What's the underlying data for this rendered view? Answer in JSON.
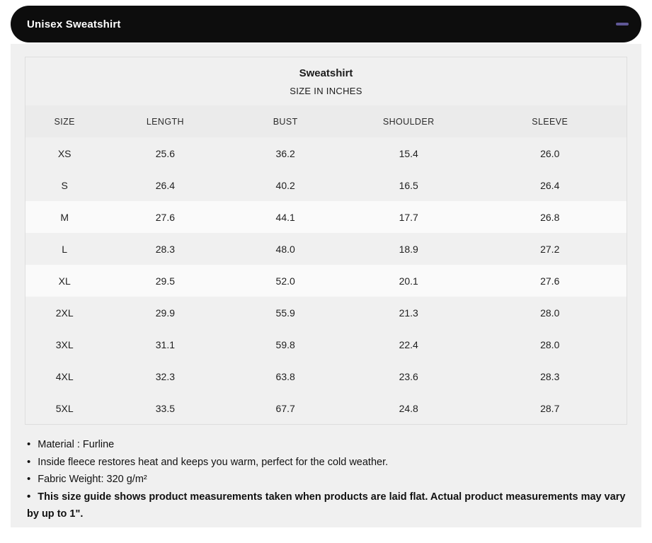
{
  "accordion": {
    "title": "Unisex Sweatshirt",
    "collapse_icon": "minus-icon"
  },
  "size_table": {
    "title": "Sweatshirt",
    "subtitle": "SIZE IN INCHES",
    "columns": [
      "SIZE",
      "LENGTH",
      "BUST",
      "SHOULDER",
      "SLEEVE"
    ],
    "rows": [
      {
        "size": "XS",
        "length": "25.6",
        "bust": "36.2",
        "shoulder": "15.4",
        "sleeve": "26.0",
        "highlight": false
      },
      {
        "size": "S",
        "length": "26.4",
        "bust": "40.2",
        "shoulder": "16.5",
        "sleeve": "26.4",
        "highlight": false
      },
      {
        "size": "M",
        "length": "27.6",
        "bust": "44.1",
        "shoulder": "17.7",
        "sleeve": "26.8",
        "highlight": true
      },
      {
        "size": "L",
        "length": "28.3",
        "bust": "48.0",
        "shoulder": "18.9",
        "sleeve": "27.2",
        "highlight": false
      },
      {
        "size": "XL",
        "length": "29.5",
        "bust": "52.0",
        "shoulder": "20.1",
        "sleeve": "27.6",
        "highlight": true
      },
      {
        "size": "2XL",
        "length": "29.9",
        "bust": "55.9",
        "shoulder": "21.3",
        "sleeve": "28.0",
        "highlight": false
      },
      {
        "size": "3XL",
        "length": "31.1",
        "bust": "59.8",
        "shoulder": "22.4",
        "sleeve": "28.0",
        "highlight": false
      },
      {
        "size": "4XL",
        "length": "32.3",
        "bust": "63.8",
        "shoulder": "23.6",
        "sleeve": "28.3",
        "highlight": false
      },
      {
        "size": "5XL",
        "length": "33.5",
        "bust": "67.7",
        "shoulder": "24.8",
        "sleeve": "28.7",
        "highlight": false
      }
    ]
  },
  "notes": [
    {
      "text": "Material : Furline",
      "bold": false
    },
    {
      "text": "Inside fleece restores heat and keeps you warm, perfect for the cold weather.",
      "bold": false
    },
    {
      "text": "Fabric Weight: 320 g/m²",
      "bold": false
    },
    {
      "text": "This size guide shows product measurements taken when products are laid flat. Actual product measurements may vary by up to 1\".",
      "bold": true
    }
  ],
  "colors": {
    "header_bar": "#0d0d0d",
    "header_text": "#ffffff",
    "collapse_icon": "#5f5796",
    "panel_bg": "#f0f0f0",
    "column_header_bg": "#ebebeb",
    "row_bg": "#f0f0f0",
    "highlight_row_bg": "#fafafa",
    "table_border": "#dedede"
  }
}
